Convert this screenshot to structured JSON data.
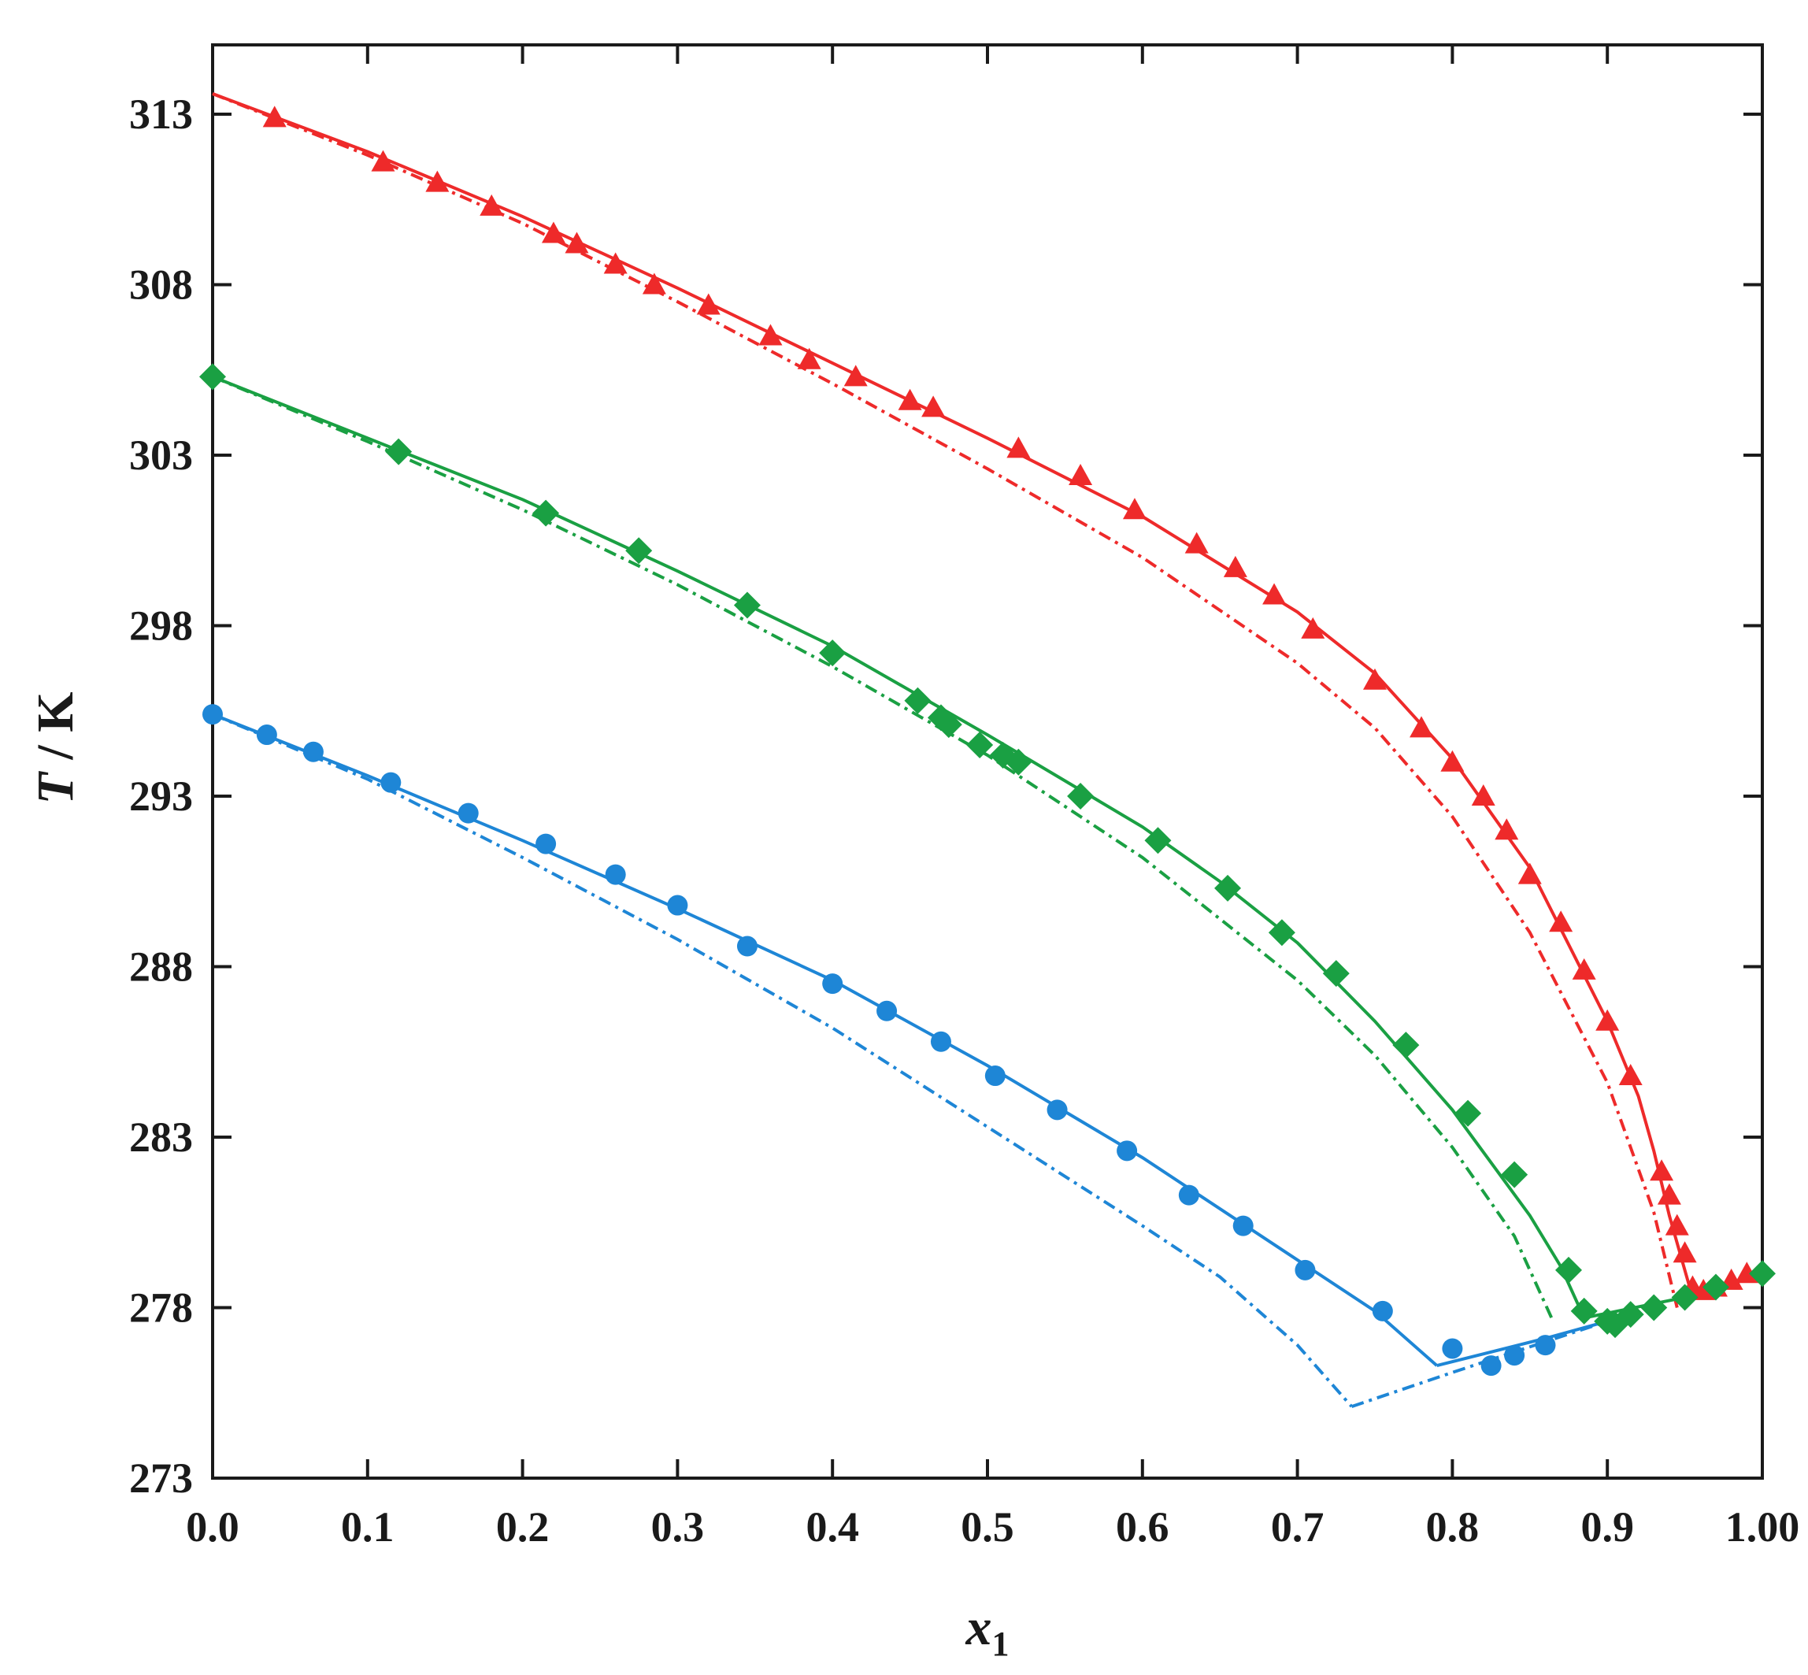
{
  "chart_data": {
    "type": "scatter",
    "title": "",
    "xlabel": {
      "var": "x",
      "sub": "1"
    },
    "ylabel": {
      "var": "T",
      "unit": " / K"
    },
    "xlim": [
      0,
      1
    ],
    "ylim": [
      273,
      315
    ],
    "xticks": [
      0.0,
      0.1,
      0.2,
      0.3,
      0.4,
      0.5,
      0.6,
      0.7,
      0.8,
      0.9,
      1.0
    ],
    "xtick_labels": [
      "0.0",
      "0.1",
      "0.2",
      "0.3",
      "0.4",
      "0.5",
      "0.6",
      "0.7",
      "0.8",
      "0.9",
      "1.00"
    ],
    "yticks": [
      273,
      278,
      283,
      288,
      293,
      298,
      303,
      308,
      313
    ],
    "ytick_labels": [
      "273",
      "278",
      "283",
      "288",
      "293",
      "298",
      "303",
      "308",
      "313"
    ],
    "grid": false,
    "legend": "none",
    "series": [
      {
        "color": "#ee2a2a",
        "marker": "triangle",
        "points": [
          [
            0.04,
            312.9
          ],
          [
            0.11,
            311.6
          ],
          [
            0.145,
            311.0
          ],
          [
            0.18,
            310.3
          ],
          [
            0.22,
            309.5
          ],
          [
            0.235,
            309.2
          ],
          [
            0.26,
            308.6
          ],
          [
            0.285,
            308.0
          ],
          [
            0.32,
            307.4
          ],
          [
            0.36,
            306.5
          ],
          [
            0.385,
            305.8
          ],
          [
            0.415,
            305.3
          ],
          [
            0.45,
            304.6
          ],
          [
            0.465,
            304.4
          ],
          [
            0.52,
            303.2
          ],
          [
            0.56,
            302.4
          ],
          [
            0.595,
            301.4
          ],
          [
            0.635,
            300.4
          ],
          [
            0.66,
            299.7
          ],
          [
            0.685,
            298.9
          ],
          [
            0.71,
            297.9
          ],
          [
            0.75,
            296.4
          ],
          [
            0.78,
            295.0
          ],
          [
            0.8,
            294.0
          ],
          [
            0.82,
            293.0
          ],
          [
            0.835,
            292.0
          ],
          [
            0.85,
            290.7
          ],
          [
            0.87,
            289.3
          ],
          [
            0.885,
            287.9
          ],
          [
            0.9,
            286.4
          ],
          [
            0.915,
            284.8
          ],
          [
            0.935,
            282.0
          ],
          [
            0.94,
            281.3
          ],
          [
            0.945,
            280.4
          ],
          [
            0.95,
            279.6
          ],
          [
            0.955,
            278.6
          ],
          [
            0.962,
            278.5
          ],
          [
            0.97,
            278.6
          ],
          [
            0.98,
            278.8
          ],
          [
            0.99,
            279.0
          ]
        ],
        "fit_solid": [
          [
            0,
            313.6
          ],
          [
            0.1,
            311.9
          ],
          [
            0.2,
            310.0
          ],
          [
            0.3,
            307.9
          ],
          [
            0.4,
            305.7
          ],
          [
            0.5,
            303.5
          ],
          [
            0.6,
            301.2
          ],
          [
            0.7,
            298.4
          ],
          [
            0.75,
            296.6
          ],
          [
            0.8,
            294.1
          ],
          [
            0.85,
            290.9
          ],
          [
            0.9,
            286.4
          ],
          [
            0.92,
            284.2
          ],
          [
            0.93,
            282.6
          ],
          [
            0.94,
            280.7
          ],
          [
            0.955,
            278.3
          ]
        ],
        "fit_dashed": [
          [
            0,
            313.6
          ],
          [
            0.1,
            311.8
          ],
          [
            0.2,
            309.8
          ],
          [
            0.3,
            307.5
          ],
          [
            0.4,
            305.1
          ],
          [
            0.5,
            302.6
          ],
          [
            0.6,
            300.0
          ],
          [
            0.7,
            296.9
          ],
          [
            0.75,
            295.0
          ],
          [
            0.8,
            292.4
          ],
          [
            0.85,
            289.0
          ],
          [
            0.9,
            284.6
          ],
          [
            0.93,
            280.8
          ],
          [
            0.945,
            278.0
          ]
        ]
      },
      {
        "color": "#1aa043",
        "marker": "diamond",
        "points": [
          [
            0.0,
            305.3
          ],
          [
            0.12,
            303.1
          ],
          [
            0.215,
            301.3
          ],
          [
            0.275,
            300.2
          ],
          [
            0.345,
            298.6
          ],
          [
            0.4,
            297.2
          ],
          [
            0.455,
            295.8
          ],
          [
            0.47,
            295.3
          ],
          [
            0.475,
            295.1
          ],
          [
            0.495,
            294.5
          ],
          [
            0.51,
            294.2
          ],
          [
            0.52,
            294.0
          ],
          [
            0.56,
            293.0
          ],
          [
            0.61,
            291.7
          ],
          [
            0.655,
            290.3
          ],
          [
            0.69,
            289.0
          ],
          [
            0.725,
            287.8
          ],
          [
            0.77,
            285.7
          ],
          [
            0.81,
            283.7
          ],
          [
            0.84,
            281.9
          ],
          [
            0.875,
            279.1
          ],
          [
            0.885,
            277.9
          ],
          [
            0.9,
            277.6
          ],
          [
            0.905,
            277.5
          ],
          [
            0.915,
            277.8
          ],
          [
            0.93,
            278.0
          ],
          [
            0.95,
            278.3
          ],
          [
            0.97,
            278.6
          ],
          [
            1.0,
            279.0
          ]
        ],
        "fit_solid": [
          [
            0,
            305.3
          ],
          [
            0.1,
            303.5
          ],
          [
            0.2,
            301.7
          ],
          [
            0.3,
            299.6
          ],
          [
            0.4,
            297.4
          ],
          [
            0.5,
            294.8
          ],
          [
            0.6,
            292.1
          ],
          [
            0.65,
            290.5
          ],
          [
            0.7,
            288.7
          ],
          [
            0.75,
            286.4
          ],
          [
            0.8,
            283.8
          ],
          [
            0.85,
            280.7
          ],
          [
            0.87,
            279.2
          ],
          [
            0.885,
            277.7
          ]
        ],
        "fit_dashed": [
          [
            0,
            305.3
          ],
          [
            0.1,
            303.4
          ],
          [
            0.2,
            301.4
          ],
          [
            0.3,
            299.2
          ],
          [
            0.4,
            296.8
          ],
          [
            0.5,
            294.2
          ],
          [
            0.6,
            291.2
          ],
          [
            0.7,
            287.6
          ],
          [
            0.75,
            285.4
          ],
          [
            0.8,
            282.7
          ],
          [
            0.84,
            280.1
          ],
          [
            0.865,
            277.6
          ]
        ]
      },
      {
        "color": "#1e86d6",
        "marker": "circle",
        "points": [
          [
            0.0,
            295.4
          ],
          [
            0.035,
            294.8
          ],
          [
            0.065,
            294.3
          ],
          [
            0.115,
            293.4
          ],
          [
            0.165,
            292.5
          ],
          [
            0.215,
            291.6
          ],
          [
            0.26,
            290.7
          ],
          [
            0.3,
            289.8
          ],
          [
            0.345,
            288.6
          ],
          [
            0.4,
            287.5
          ],
          [
            0.435,
            286.7
          ],
          [
            0.47,
            285.8
          ],
          [
            0.505,
            284.8
          ],
          [
            0.545,
            283.8
          ],
          [
            0.59,
            282.6
          ],
          [
            0.63,
            281.3
          ],
          [
            0.665,
            280.4
          ],
          [
            0.705,
            279.1
          ],
          [
            0.755,
            277.9
          ],
          [
            0.8,
            276.8
          ],
          [
            0.825,
            276.3
          ],
          [
            0.84,
            276.6
          ],
          [
            0.86,
            276.9
          ]
        ],
        "fit_solid": [
          [
            0,
            295.4
          ],
          [
            0.1,
            293.6
          ],
          [
            0.2,
            291.7
          ],
          [
            0.3,
            289.7
          ],
          [
            0.4,
            287.6
          ],
          [
            0.5,
            285.1
          ],
          [
            0.6,
            282.4
          ],
          [
            0.7,
            279.4
          ],
          [
            0.75,
            277.9
          ],
          [
            0.79,
            276.3
          ]
        ],
        "fit_dashed": [
          [
            0,
            295.4
          ],
          [
            0.1,
            293.5
          ],
          [
            0.2,
            291.2
          ],
          [
            0.3,
            288.8
          ],
          [
            0.4,
            286.2
          ],
          [
            0.5,
            283.3
          ],
          [
            0.6,
            280.4
          ],
          [
            0.65,
            278.9
          ],
          [
            0.7,
            276.9
          ],
          [
            0.735,
            275.1
          ]
        ]
      }
    ],
    "eutectic_lines": [
      {
        "color": "#1e86d6",
        "style": "dashed",
        "points": [
          [
            0.735,
            275.1
          ],
          [
            0.8,
            276.1
          ],
          [
            0.86,
            277.0
          ],
          [
            0.9,
            277.6
          ]
        ]
      },
      {
        "color": "#1e86d6",
        "style": "solid",
        "points": [
          [
            0.79,
            276.3
          ],
          [
            0.86,
            277.1
          ],
          [
            0.9,
            277.6
          ]
        ]
      },
      {
        "color": "#1aa043",
        "style": "solid",
        "points": [
          [
            0.885,
            277.7
          ],
          [
            0.95,
            278.3
          ],
          [
            1.0,
            279.0
          ]
        ]
      },
      {
        "color": "#ee2a2a",
        "style": "solid",
        "points": [
          [
            0.955,
            278.3
          ],
          [
            1.0,
            279.0
          ]
        ]
      }
    ]
  }
}
